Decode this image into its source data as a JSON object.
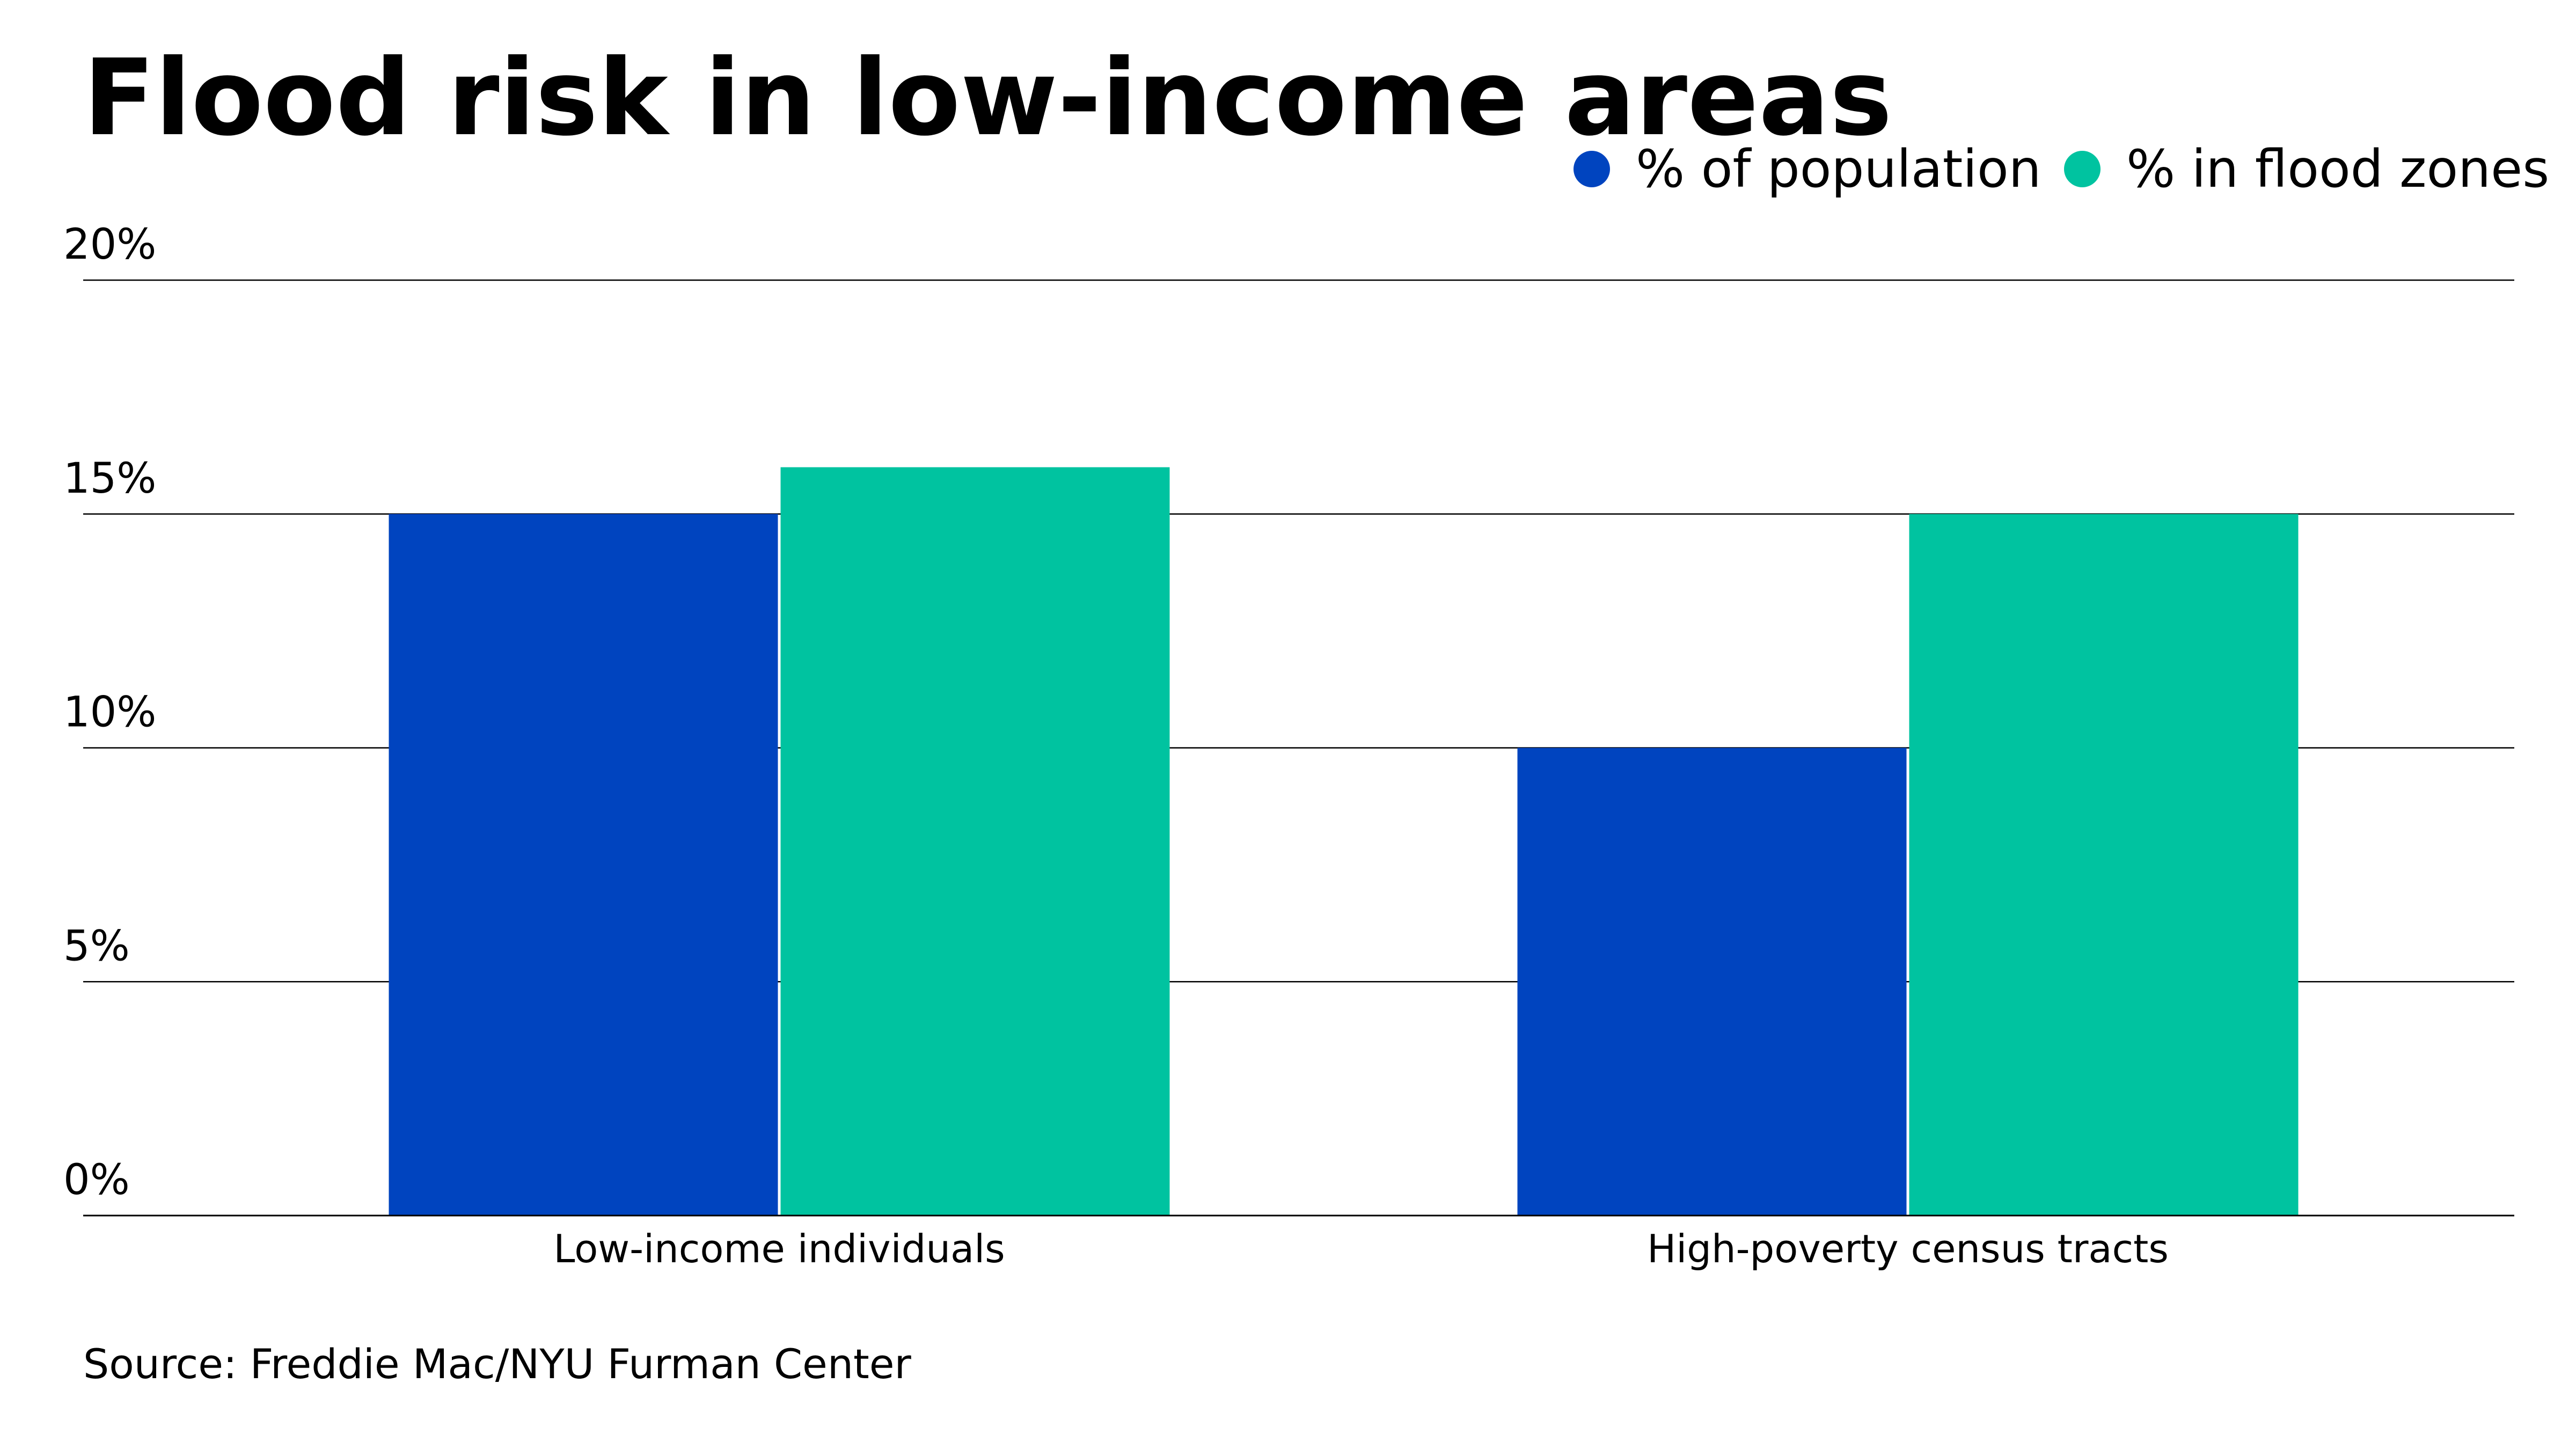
{
  "chart_data": {
    "type": "bar",
    "title": "Flood risk in low-income areas",
    "categories": [
      "Low-income individuals",
      "High-poverty census tracts"
    ],
    "series": [
      {
        "name": "% of population",
        "values": [
          15,
          10
        ],
        "color": "#0044BF"
      },
      {
        "name": "% in flood zones",
        "values": [
          16,
          15
        ],
        "color": "#00C3A0"
      }
    ],
    "yticks": [
      "0%",
      "5%",
      "10%",
      "15%",
      "20%"
    ],
    "ytick_values": [
      0,
      5,
      10,
      15,
      20
    ],
    "ylim": [
      0,
      20
    ],
    "grid": true,
    "legend_position": "top-right",
    "source": "Source: Freddie Mac/NYU Furman Center"
  }
}
